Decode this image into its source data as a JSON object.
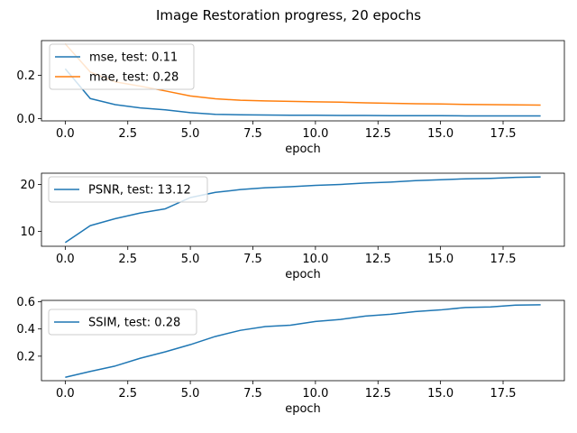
{
  "title": "Image Restoration progress, 20 epochs",
  "colors": {
    "blue": "#1f77b4",
    "orange": "#ff7f0e"
  },
  "chart_data": [
    {
      "type": "line",
      "title": "",
      "xlabel": "epoch",
      "ylabel": "",
      "xlim": [
        -0.95,
        19.95
      ],
      "ylim": [
        -0.01,
        0.36
      ],
      "xticks": [
        0.0,
        2.5,
        5.0,
        7.5,
        10.0,
        12.5,
        15.0,
        17.5
      ],
      "yticks": [
        0.0,
        0.2
      ],
      "legend_position": "upper-left",
      "x": [
        0,
        1,
        2,
        3,
        4,
        5,
        6,
        7,
        8,
        9,
        10,
        11,
        12,
        13,
        14,
        15,
        16,
        17,
        18,
        19
      ],
      "series": [
        {
          "name": "mse,  test: 0.11",
          "color": "#1f77b4",
          "values": [
            0.23,
            0.093,
            0.065,
            0.05,
            0.041,
            0.028,
            0.02,
            0.018,
            0.017,
            0.016,
            0.016,
            0.015,
            0.015,
            0.014,
            0.014,
            0.014,
            0.013,
            0.013,
            0.013,
            0.013
          ]
        },
        {
          "name": "mae,  test: 0.28",
          "color": "#ff7f0e",
          "values": [
            0.345,
            0.215,
            0.17,
            0.15,
            0.128,
            0.105,
            0.092,
            0.085,
            0.082,
            0.08,
            0.078,
            0.076,
            0.073,
            0.071,
            0.069,
            0.068,
            0.066,
            0.065,
            0.064,
            0.063
          ]
        }
      ]
    },
    {
      "type": "line",
      "title": "",
      "xlabel": "epoch",
      "ylabel": "",
      "xlim": [
        -0.95,
        19.95
      ],
      "ylim": [
        6.8,
        22.4
      ],
      "xticks": [
        0.0,
        2.5,
        5.0,
        7.5,
        10.0,
        12.5,
        15.0,
        17.5
      ],
      "yticks": [
        10,
        20
      ],
      "legend_position": "upper-left",
      "x": [
        0,
        1,
        2,
        3,
        4,
        5,
        6,
        7,
        8,
        9,
        10,
        11,
        12,
        13,
        14,
        15,
        16,
        17,
        18,
        19
      ],
      "series": [
        {
          "name": "PSNR,  test: 13.12",
          "color": "#1f77b4",
          "values": [
            7.6,
            11.2,
            12.7,
            13.9,
            14.8,
            17.2,
            18.3,
            18.9,
            19.3,
            19.5,
            19.8,
            20.0,
            20.3,
            20.5,
            20.8,
            21.0,
            21.2,
            21.3,
            21.5,
            21.6
          ]
        }
      ]
    },
    {
      "type": "line",
      "title": "",
      "xlabel": "epoch",
      "ylabel": "",
      "xlim": [
        -0.95,
        19.95
      ],
      "ylim": [
        0.02,
        0.61
      ],
      "xticks": [
        0.0,
        2.5,
        5.0,
        7.5,
        10.0,
        12.5,
        15.0,
        17.5
      ],
      "yticks": [
        0.2,
        0.4,
        0.6
      ],
      "legend_position": "upper-left",
      "x": [
        0,
        1,
        2,
        3,
        4,
        5,
        6,
        7,
        8,
        9,
        10,
        11,
        12,
        13,
        14,
        15,
        16,
        17,
        18,
        19
      ],
      "series": [
        {
          "name": "SSIM,  test: 0.28",
          "color": "#1f77b4",
          "values": [
            0.045,
            0.088,
            0.128,
            0.185,
            0.232,
            0.285,
            0.345,
            0.39,
            0.418,
            0.428,
            0.455,
            0.47,
            0.495,
            0.508,
            0.528,
            0.54,
            0.558,
            0.562,
            0.575,
            0.578
          ]
        }
      ]
    }
  ]
}
